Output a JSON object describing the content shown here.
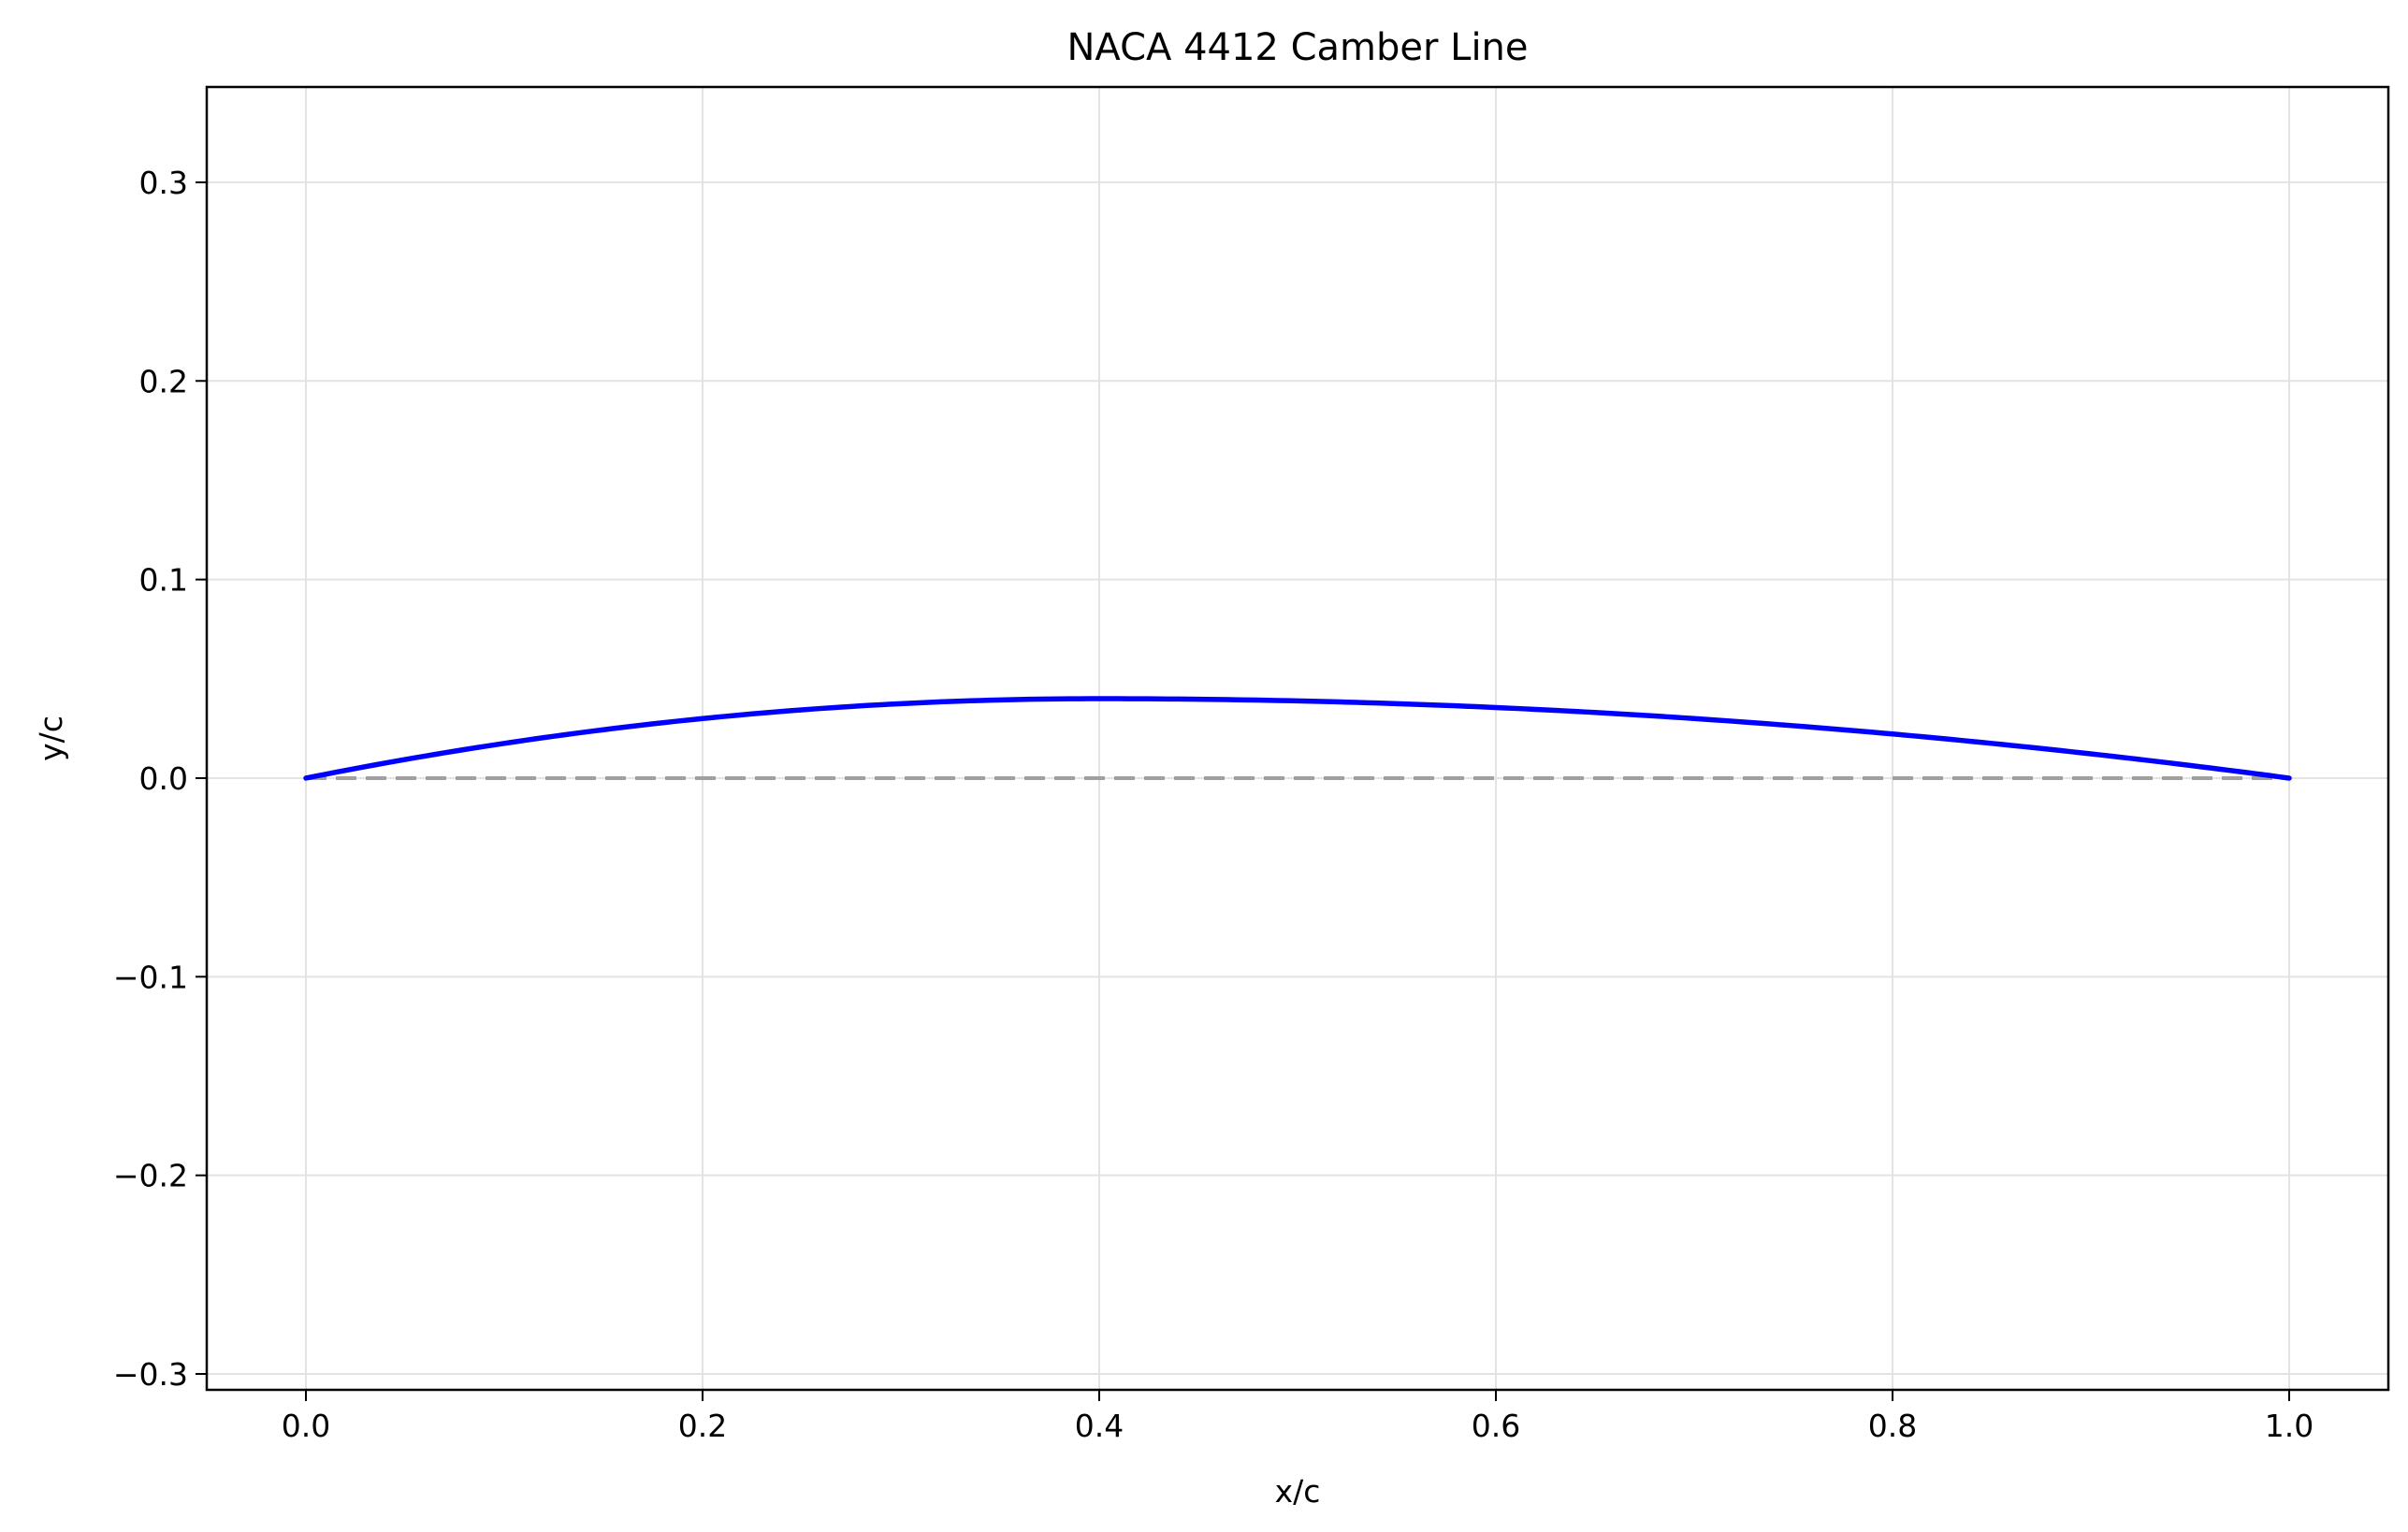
{
  "chart_data": {
    "type": "line",
    "title": "NACA 4412 Camber Line",
    "xlabel": "x/c",
    "ylabel": "y/c",
    "xlim": [
      -0.05,
      1.05
    ],
    "ylim": [
      -0.308,
      0.348
    ],
    "xticks": [
      0.0,
      0.2,
      0.4,
      0.6,
      0.8,
      1.0
    ],
    "xtick_labels": [
      "0.0",
      "0.2",
      "0.4",
      "0.6",
      "0.8",
      "1.0"
    ],
    "yticks": [
      -0.3,
      -0.2,
      -0.1,
      0.0,
      0.1,
      0.2,
      0.3
    ],
    "ytick_labels": [
      "−0.3",
      "−0.2",
      "−0.1",
      "0.0",
      "0.1",
      "0.2",
      "0.3"
    ],
    "grid": true,
    "camber": {
      "max_camber": 0.04,
      "max_camber_position": 0.4
    },
    "series": [
      {
        "style": "solid",
        "color": "#0000ff",
        "x": [
          0.0,
          0.02,
          0.05,
          0.1,
          0.15,
          0.2,
          0.25,
          0.3,
          0.35,
          0.4,
          0.45,
          0.5,
          0.55,
          0.6,
          0.65,
          0.7,
          0.75,
          0.8,
          0.85,
          0.9,
          0.95,
          1.0
        ],
        "y": [
          0.0,
          0.0039,
          0.0094,
          0.0175,
          0.0244,
          0.03,
          0.0344,
          0.0375,
          0.0394,
          0.04,
          0.0397,
          0.0389,
          0.0374,
          0.0356,
          0.0331,
          0.03,
          0.0264,
          0.0222,
          0.0174,
          0.0122,
          0.0064,
          0.0
        ]
      },
      {
        "style": "dashed",
        "color": "#a0a0a0",
        "x": [
          0.0,
          1.0
        ],
        "y": [
          0.0,
          0.0
        ]
      }
    ]
  }
}
